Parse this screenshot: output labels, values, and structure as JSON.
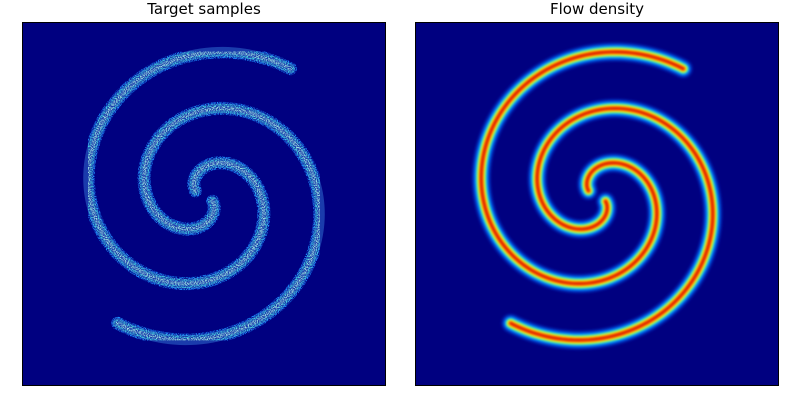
{
  "figure": {
    "panels": [
      {
        "title": "Target samples",
        "kind": "scatter-density",
        "background_color": "#000080"
      },
      {
        "title": "Flow density",
        "kind": "smooth-density",
        "background_color": "#000080"
      }
    ],
    "colormap": "jet"
  }
}
